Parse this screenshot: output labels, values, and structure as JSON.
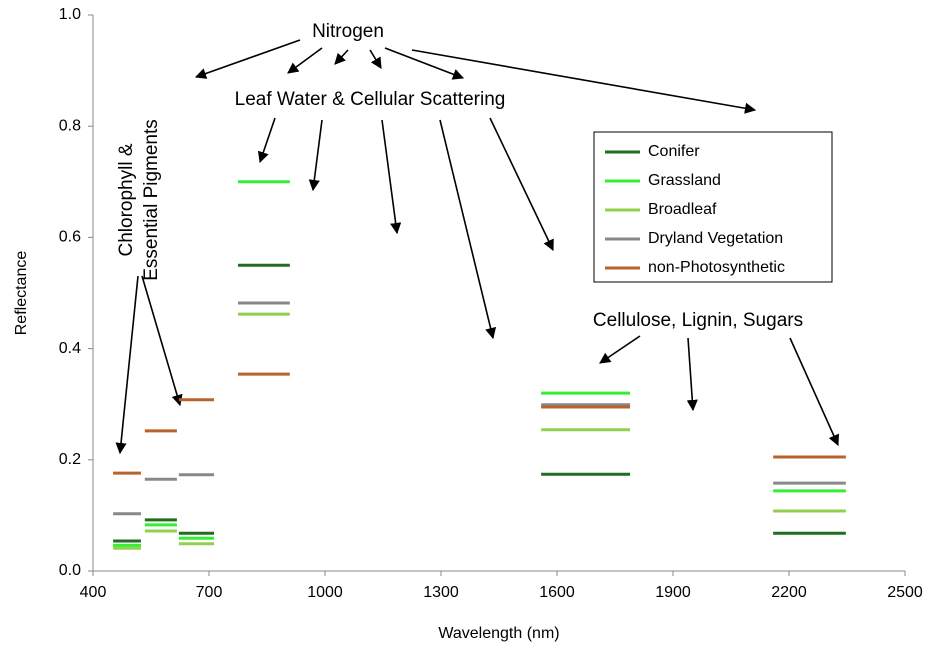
{
  "chart_data": {
    "type": "band",
    "x_label": "Wavelength (nm)",
    "y_label": "Reflectance",
    "bands": [
      [
        452,
        524
      ],
      [
        534,
        617
      ],
      [
        622,
        713
      ],
      [
        775,
        909
      ],
      [
        1559,
        1789
      ],
      [
        2159,
        2347
      ]
    ],
    "series": [
      {
        "name": "Conifer",
        "color": "#1e6e1e",
        "values": [
          0.054,
          0.092,
          0.068,
          0.55,
          0.174,
          0.068
        ]
      },
      {
        "name": "Grassland",
        "color": "#33ee33",
        "values": [
          0.046,
          0.083,
          0.059,
          0.7,
          0.32,
          0.144
        ]
      },
      {
        "name": "Broadleaf",
        "color": "#92d050",
        "values": [
          0.041,
          0.072,
          0.049,
          0.462,
          0.254,
          0.108
        ]
      },
      {
        "name": "Dryland Vegetation",
        "color": "#888888",
        "values": [
          0.103,
          0.165,
          0.173,
          0.482,
          0.299,
          0.158
        ]
      },
      {
        "name": "non-Photosynthetic",
        "color": "#b8622c",
        "values": [
          0.176,
          0.252,
          0.308,
          0.354,
          0.295,
          0.205
        ]
      }
    ],
    "xlim": [
      400,
      2500
    ],
    "xticks": [
      400,
      700,
      1000,
      1300,
      1600,
      1900,
      2200,
      2500
    ],
    "ylim": [
      0,
      1
    ],
    "yticks": [
      {
        "value": 0,
        "label": "0.0"
      },
      {
        "value": 0.2,
        "label": "0.2"
      },
      {
        "value": 0.4,
        "label": "0.4"
      },
      {
        "value": 0.6,
        "label": "0.6"
      },
      {
        "value": 0.8,
        "label": "0.8"
      },
      {
        "value": 1,
        "label": "1.0"
      }
    ],
    "annotations": [
      "Nitrogen",
      "Leaf Water & Cellular Scattering",
      "Chlorophyll &",
      "Essential Pigments",
      "Cellulose, Lignin, Sugars"
    ],
    "legend": "upper right"
  }
}
